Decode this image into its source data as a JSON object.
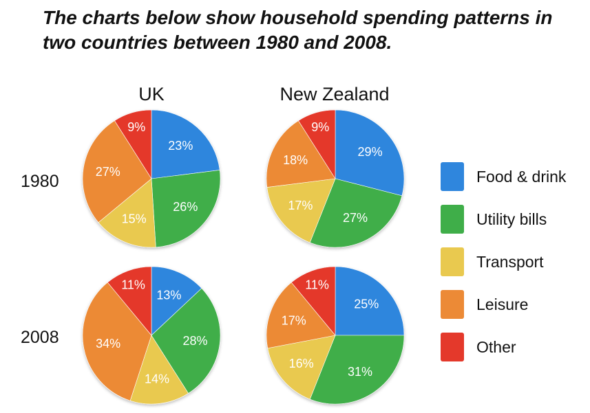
{
  "title": "The charts below show household spending patterns in two countries between 1980 and 2008.",
  "columns": [
    "UK",
    "New Zealand"
  ],
  "rows": [
    "1980",
    "2008"
  ],
  "colors": {
    "Food & drink": "#2f86dd",
    "Utility bills": "#3fae49",
    "Transport": "#e9c94f",
    "Leisure": "#ec8a36",
    "Other": "#e4392b"
  },
  "chart_data": [
    {
      "type": "pie",
      "country": "UK",
      "year": "1980",
      "categories": [
        "Food & drink",
        "Utility bills",
        "Transport",
        "Leisure",
        "Other"
      ],
      "values": [
        23,
        26,
        15,
        27,
        9
      ]
    },
    {
      "type": "pie",
      "country": "New Zealand",
      "year": "1980",
      "categories": [
        "Food & drink",
        "Utility bills",
        "Transport",
        "Leisure",
        "Other"
      ],
      "values": [
        29,
        27,
        17,
        18,
        9
      ]
    },
    {
      "type": "pie",
      "country": "UK",
      "year": "2008",
      "categories": [
        "Food & drink",
        "Utility bills",
        "Transport",
        "Leisure",
        "Other"
      ],
      "values": [
        13,
        28,
        14,
        34,
        11
      ]
    },
    {
      "type": "pie",
      "country": "New Zealand",
      "year": "2008",
      "categories": [
        "Food & drink",
        "Utility bills",
        "Transport",
        "Leisure",
        "Other"
      ],
      "values": [
        25,
        31,
        16,
        17,
        11
      ]
    }
  ],
  "legend": [
    "Food & drink",
    "Utility bills",
    "Transport",
    "Leisure",
    "Other"
  ]
}
